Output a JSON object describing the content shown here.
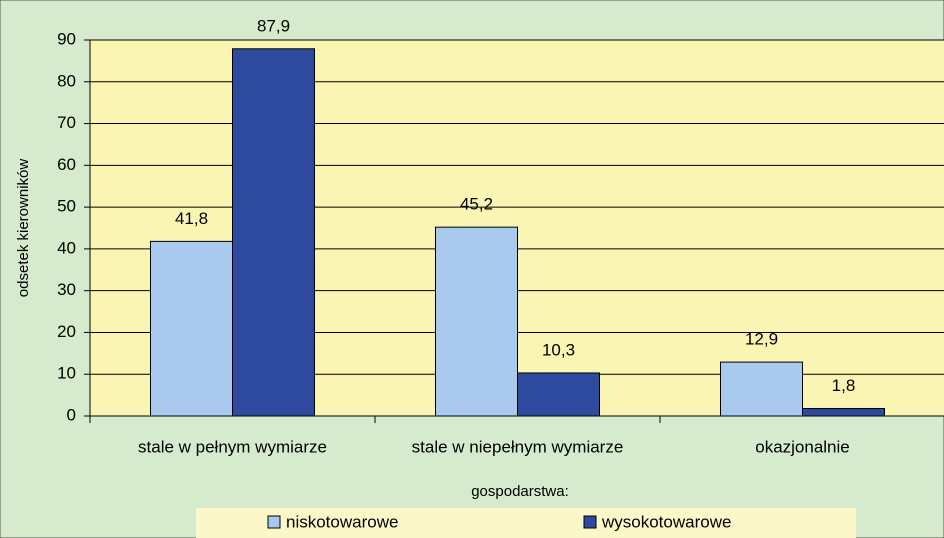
{
  "chart_data": {
    "type": "bar",
    "y_label": "odsetek kierowników",
    "categories": [
      "stale w pełnym wymiarze",
      "stale w niepełnym wymiarze",
      "okazjonalnie"
    ],
    "series": [
      {
        "name": "niskotowarowe",
        "color": "#a9c9ee",
        "values": [
          41.8,
          45.2,
          12.9
        ],
        "value_labels": [
          "41,8",
          "45,2",
          "12,9"
        ]
      },
      {
        "name": "wysokotowarowe",
        "color": "#2e4a9e",
        "values": [
          87.9,
          10.3,
          1.8
        ],
        "value_labels": [
          "87,9",
          "10,3",
          "1,8"
        ]
      }
    ],
    "legend_title": "gospodarstwa:",
    "legend_position": "bottom",
    "ylim": [
      0,
      90
    ],
    "yticks": [
      0,
      10,
      20,
      30,
      40,
      50,
      60,
      70,
      80,
      90
    ],
    "grid": true
  }
}
